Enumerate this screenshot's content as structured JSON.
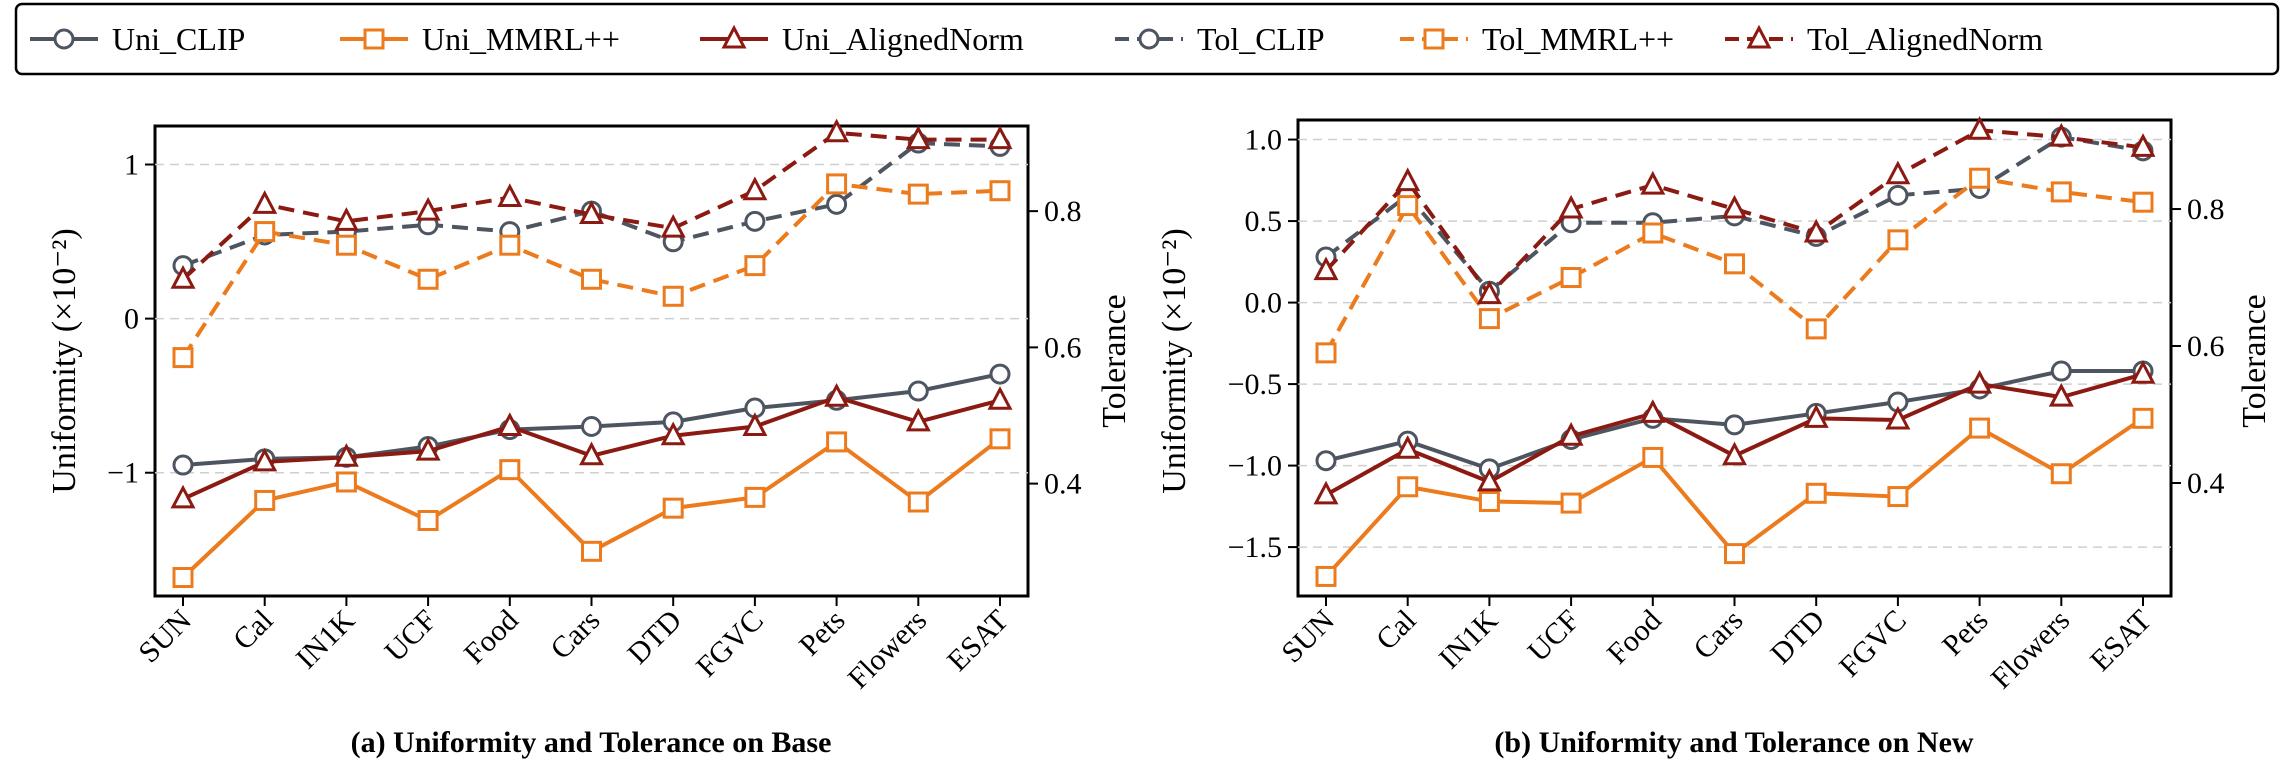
{
  "legend": [
    {
      "label": "Uni_CLIP"
    },
    {
      "label": "Uni_MMRL++"
    },
    {
      "label": "Uni_AlignedNorm"
    },
    {
      "label": "Tol_CLIP"
    },
    {
      "label": "Tol_MMRL++"
    },
    {
      "label": "Tol_AlignedNorm"
    }
  ],
  "colors": {
    "clip": "#4d5561",
    "mmrl": "#ec7b1e",
    "aligned": "#8b1a12"
  },
  "chart_data": [
    {
      "type": "line",
      "caption": "(a) Uniformity and Tolerance on Base",
      "ylabel_left": "Uniformity (×10⁻²)",
      "ylabel_right": "Tolerance",
      "categories": [
        "SUN",
        "Cal",
        "IN1K",
        "UCF",
        "Food",
        "Cars",
        "DTD",
        "FGVC",
        "Pets",
        "Flowers",
        "ESAT"
      ],
      "left_axis": {
        "range": [
          -1.8,
          1.25
        ],
        "ticks": [
          -1,
          0,
          1
        ],
        "tick_labels": [
          "−1",
          "0",
          "1"
        ]
      },
      "right_axis": {
        "range": [
          0.235,
          0.925
        ],
        "ticks": [
          0.4,
          0.6,
          0.8
        ],
        "tick_labels": [
          "0.4",
          "0.6",
          "0.8"
        ]
      },
      "grid": true,
      "series": [
        {
          "name": "Uni_CLIP",
          "axis": "left",
          "color_key": "clip",
          "marker": "circle",
          "dashed": false,
          "values": [
            -0.95,
            -0.91,
            -0.9,
            -0.83,
            -0.72,
            -0.7,
            -0.67,
            -0.58,
            -0.53,
            -0.47,
            -0.36
          ]
        },
        {
          "name": "Uni_MMRL++",
          "axis": "left",
          "color_key": "mmrl",
          "marker": "square",
          "dashed": false,
          "values": [
            -1.68,
            -1.18,
            -1.06,
            -1.31,
            -0.98,
            -1.51,
            -1.23,
            -1.16,
            -0.8,
            -1.19,
            -0.78
          ]
        },
        {
          "name": "Uni_AlignedNorm",
          "axis": "left",
          "color_key": "aligned",
          "marker": "triangle",
          "dashed": false,
          "values": [
            -1.17,
            -0.93,
            -0.9,
            -0.86,
            -0.7,
            -0.89,
            -0.76,
            -0.7,
            -0.51,
            -0.67,
            -0.53
          ]
        },
        {
          "name": "Tol_CLIP",
          "axis": "right",
          "color_key": "clip",
          "marker": "circle",
          "dashed": true,
          "values": [
            0.72,
            0.765,
            0.77,
            0.78,
            0.77,
            0.8,
            0.755,
            0.785,
            0.81,
            0.9,
            0.895
          ]
        },
        {
          "name": "Tol_MMRL++",
          "axis": "right",
          "color_key": "mmrl",
          "marker": "square",
          "dashed": true,
          "values": [
            0.585,
            0.77,
            0.75,
            0.7,
            0.75,
            0.7,
            0.675,
            0.72,
            0.84,
            0.825,
            0.83
          ]
        },
        {
          "name": "Tol_AlignedNorm",
          "axis": "right",
          "color_key": "aligned",
          "marker": "triangle",
          "dashed": true,
          "values": [
            0.7,
            0.81,
            0.785,
            0.8,
            0.82,
            0.795,
            0.775,
            0.83,
            0.915,
            0.905,
            0.905
          ]
        }
      ]
    },
    {
      "type": "line",
      "caption": "(b) Uniformity and Tolerance on New",
      "ylabel_left": "Uniformity (×10⁻²)",
      "ylabel_right": "Tolerance",
      "categories": [
        "SUN",
        "Cal",
        "IN1K",
        "UCF",
        "Food",
        "Cars",
        "DTD",
        "FGVC",
        "Pets",
        "Flowers",
        "ESAT"
      ],
      "left_axis": {
        "range": [
          -1.8,
          1.12
        ],
        "ticks": [
          -1.5,
          -1.0,
          -0.5,
          0.0,
          0.5,
          1.0
        ],
        "tick_labels": [
          "−1.5",
          "−1.0",
          "−0.5",
          "0.0",
          "0.5",
          "1.0"
        ]
      },
      "right_axis": {
        "range": [
          0.235,
          0.93
        ],
        "ticks": [
          0.4,
          0.6,
          0.8
        ],
        "tick_labels": [
          "0.4",
          "0.6",
          "0.8"
        ]
      },
      "grid": true,
      "series": [
        {
          "name": "Uni_CLIP",
          "axis": "left",
          "color_key": "clip",
          "marker": "circle",
          "dashed": false,
          "values": [
            -0.97,
            -0.85,
            -1.02,
            -0.84,
            -0.71,
            -0.75,
            -0.68,
            -0.61,
            -0.53,
            -0.42,
            -0.42
          ]
        },
        {
          "name": "Uni_MMRL++",
          "axis": "left",
          "color_key": "mmrl",
          "marker": "square",
          "dashed": false,
          "values": [
            -1.68,
            -1.13,
            -1.22,
            -1.23,
            -0.95,
            -1.54,
            -1.17,
            -1.19,
            -0.77,
            -1.05,
            -0.71
          ]
        },
        {
          "name": "Uni_AlignedNorm",
          "axis": "left",
          "color_key": "aligned",
          "marker": "triangle",
          "dashed": false,
          "values": [
            -1.18,
            -0.9,
            -1.1,
            -0.82,
            -0.68,
            -0.94,
            -0.71,
            -0.72,
            -0.5,
            -0.58,
            -0.44
          ]
        },
        {
          "name": "Tol_CLIP",
          "axis": "right",
          "color_key": "clip",
          "marker": "circle",
          "dashed": true,
          "values": [
            0.73,
            0.82,
            0.68,
            0.78,
            0.78,
            0.79,
            0.76,
            0.82,
            0.83,
            0.905,
            0.885
          ]
        },
        {
          "name": "Tol_MMRL++",
          "axis": "right",
          "color_key": "mmrl",
          "marker": "square",
          "dashed": true,
          "values": [
            0.59,
            0.805,
            0.64,
            0.7,
            0.765,
            0.72,
            0.625,
            0.755,
            0.845,
            0.825,
            0.81
          ]
        },
        {
          "name": "Tol_AlignedNorm",
          "axis": "right",
          "color_key": "aligned",
          "marker": "triangle",
          "dashed": true,
          "values": [
            0.71,
            0.84,
            0.675,
            0.8,
            0.835,
            0.8,
            0.765,
            0.85,
            0.915,
            0.905,
            0.89
          ]
        }
      ]
    }
  ]
}
